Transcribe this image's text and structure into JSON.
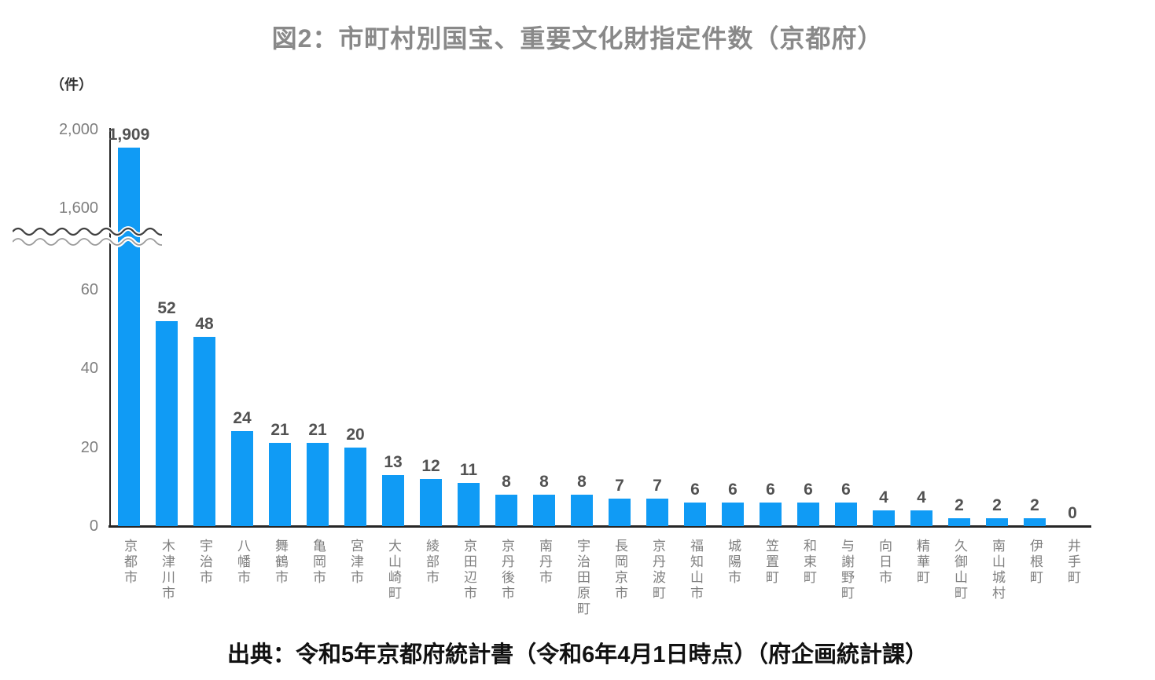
{
  "page": {
    "title": "図2：市町村別国宝、重要文化財指定件数（京都府）",
    "unit_label": "（件）",
    "source": "出典：令和5年京都府統計書（令和6年4月1日時点）（府企画統計課）"
  },
  "colors": {
    "bar": "#109BF5",
    "title_text": "#898989",
    "tick_text": "#7F7F7F",
    "value_text": "#525252",
    "category_text": "#7F7F7F",
    "axis_line": "#262626",
    "source_text": "#111111",
    "break_wave_top": "#404040",
    "break_wave_bottom": "#9B9B9B"
  },
  "chart_data": {
    "type": "bar",
    "title": "図2：市町村別国宝、重要文化財指定件数（京都府）",
    "ylabel": "（件）",
    "xlabel": "",
    "grid": false,
    "legend": false,
    "bar_color": "#109BF5",
    "axis_break": true,
    "categories": [
      "京都市",
      "木津川市",
      "宇治市",
      "八幡市",
      "舞鶴市",
      "亀岡市",
      "宮津市",
      "大山崎町",
      "綾部市",
      "京田辺市",
      "京丹後市",
      "南丹市",
      "宇治田原町",
      "長岡京市",
      "京丹波町",
      "福知山市",
      "城陽市",
      "笠置町",
      "和束町",
      "与謝野町",
      "向日市",
      "精華町",
      "久御山町",
      "南山城村",
      "伊根町",
      "井手町"
    ],
    "values": [
      1909,
      52,
      48,
      24,
      21,
      21,
      20,
      13,
      12,
      11,
      8,
      8,
      8,
      7,
      7,
      6,
      6,
      6,
      6,
      6,
      4,
      4,
      2,
      2,
      2,
      0
    ],
    "value_labels": [
      "1,909",
      "52",
      "48",
      "24",
      "21",
      "21",
      "20",
      "13",
      "12",
      "11",
      "8",
      "8",
      "8",
      "7",
      "7",
      "6",
      "6",
      "6",
      "6",
      "6",
      "4",
      "4",
      "2",
      "2",
      "2",
      "0"
    ],
    "y_axis": {
      "broken_axis": true,
      "lower_range": [
        0,
        70
      ],
      "upper_range": [
        1500,
        2000
      ],
      "ticks": [
        {
          "label": "0",
          "value": 0
        },
        {
          "label": "20",
          "value": 20
        },
        {
          "label": "40",
          "value": 40
        },
        {
          "label": "60",
          "value": 60
        },
        {
          "label": "1,600",
          "value": 1600
        },
        {
          "label": "2,000",
          "value": 2000
        }
      ]
    },
    "source": "出典：令和5年京都府統計書（令和6年4月1日時点）（府企画統計課）"
  }
}
